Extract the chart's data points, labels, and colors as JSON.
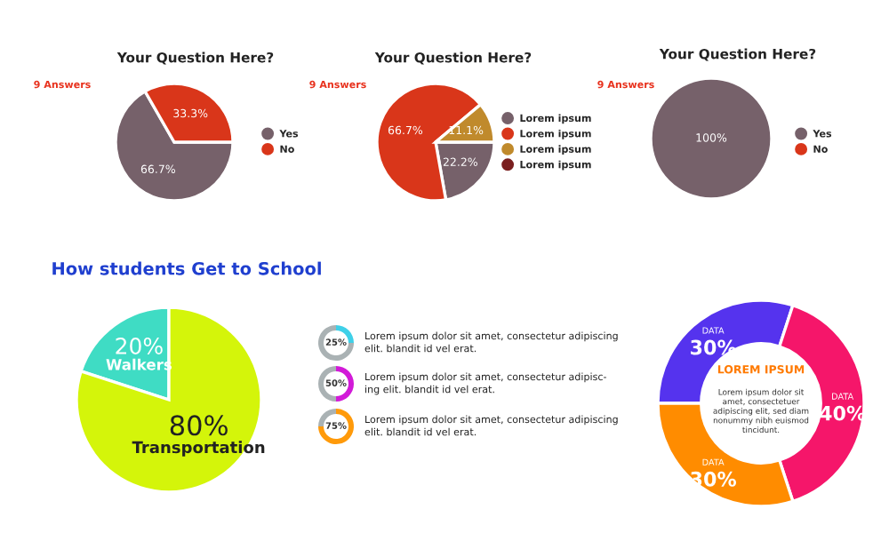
{
  "chart_data": [
    {
      "type": "pie",
      "title": "Your Question Here?",
      "annotations": [
        "9 Answers"
      ],
      "categories": [
        "Yes",
        "No"
      ],
      "values": [
        66.7,
        33.3
      ],
      "colors": [
        "#76616a",
        "#d9361a"
      ],
      "value_labels": [
        "66.7%",
        "33.3%"
      ],
      "legend": "right"
    },
    {
      "type": "pie",
      "title": "Your Question Here?",
      "annotations": [
        "9 Answers"
      ],
      "categories": [
        "Lorem ipsum",
        "Lorem ipsum",
        "Lorem ipsum",
        "Lorem ipsum"
      ],
      "values": [
        22.2,
        66.7,
        11.1,
        null
      ],
      "colors": [
        "#76616a",
        "#d9361a",
        "#c08a2c",
        "#7a1f1f"
      ],
      "value_labels": [
        "22.2%",
        "66.7%",
        "11.1%",
        null
      ],
      "legend": "right"
    },
    {
      "type": "pie",
      "title": "Your Question Here?",
      "annotations": [
        "9 Answers"
      ],
      "categories": [
        "Yes",
        "No"
      ],
      "values": [
        100,
        null
      ],
      "colors": [
        "#76616a",
        "#d9361a"
      ],
      "value_labels": [
        "100%",
        null
      ],
      "legend": "right"
    },
    {
      "type": "pie",
      "title": "How students Get to School",
      "categories": [
        "Walkers",
        "Transportation"
      ],
      "values": [
        20,
        80
      ],
      "colors": [
        "#3fdcc4",
        "#d4f50a"
      ],
      "value_labels": [
        "20%",
        "80%"
      ]
    },
    {
      "type": "other",
      "values": [
        25,
        50,
        75
      ],
      "colors": [
        "#3fd0e8",
        "#d21ad8",
        "#ff9a0a"
      ],
      "value_labels": [
        "25%",
        "50%",
        "75%"
      ],
      "annotations": [
        "Lorem ipsum dolor sit amet, consectetur adipiscing\nelit. blandit id vel erat.",
        "Lorem ipsum dolor sit amet, consectetur adipisc-\ning elit. blandit id vel erat.",
        "Lorem ipsum dolor sit amet, consectetur adipiscing\nelit. blandit id vel erat."
      ]
    },
    {
      "type": "donut",
      "title": "LOREM IPSUM",
      "categories": [
        "DATA",
        "DATA",
        "DATA"
      ],
      "values": [
        30,
        40,
        30
      ],
      "colors": [
        "#5533ee",
        "#f5166a",
        "#ff8c00"
      ],
      "value_labels": [
        "30%",
        "40%",
        "30%"
      ],
      "annotations": [
        "Lorem ipsum dolor sit\namet, consectetuer\nadipiscing elit, sed diam\nnonummy nibh euismod\ntincidunt."
      ]
    }
  ]
}
